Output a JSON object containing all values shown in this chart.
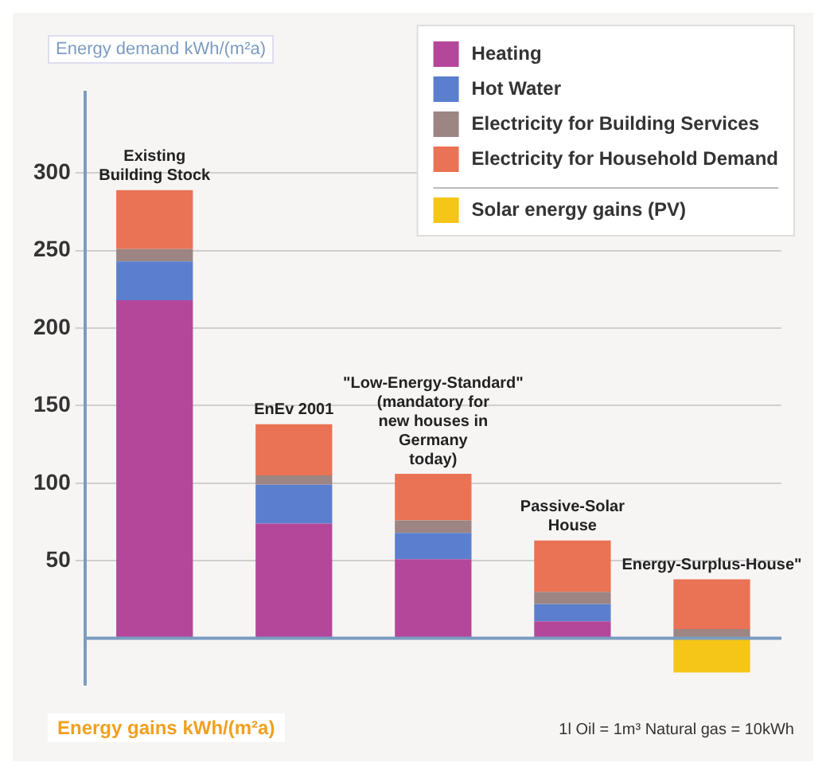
{
  "chart_data": {
    "type": "bar",
    "stacked": true,
    "ylabel": "Energy demand kWh/(m²a)",
    "categories": [
      "Existing Building Stock",
      "EnEv 2001",
      "\"Low-Energy-Standard\" (mandatory for new houses in Germany today)",
      "Passive-Solar House",
      "Energy-Surplus-House\""
    ],
    "series": [
      {
        "name": "Heating",
        "color": "#b5479b",
        "values": [
          218,
          74,
          51,
          11,
          0
        ]
      },
      {
        "name": "Hot Water",
        "color": "#5b7fce",
        "values": [
          25,
          25,
          17,
          11,
          0
        ]
      },
      {
        "name": "Electricity for Building Services",
        "color": "#9c8583",
        "values": [
          8,
          6,
          8,
          8,
          6
        ]
      },
      {
        "name": "Electricity for Household Demand",
        "color": "#ea7355",
        "values": [
          38,
          33,
          30,
          33,
          32
        ]
      },
      {
        "name": "Solar energy gains (PV)",
        "color": "#f5c518",
        "values": [
          0,
          0,
          0,
          0,
          -22
        ]
      }
    ],
    "ref_lines": [
      {
        "axis": "y",
        "value": 0,
        "color": "#7b9cc0"
      }
    ],
    "ylim": [
      -30,
      352
    ],
    "yticks": [
      50,
      100,
      150,
      200,
      250,
      300
    ],
    "grid": "y",
    "legend": "top right",
    "annotations": [
      "Energy gains kWh/(m²a)",
      "1l Oil = 1m³ Natural gas = 10kWh"
    ]
  }
}
